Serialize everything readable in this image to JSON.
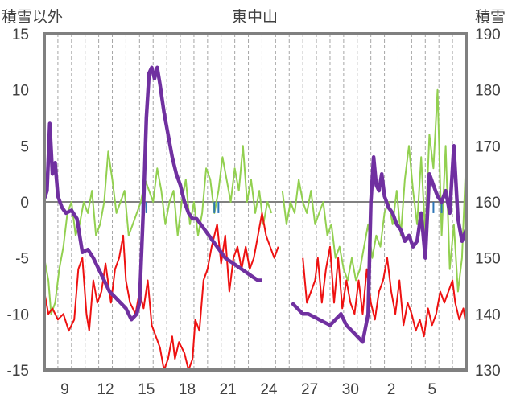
{
  "chart_data": {
    "type": "line",
    "title": "東中山",
    "left_axis_label": "積雪以外",
    "right_axis_label": "積雪",
    "ylim_left": [
      -15,
      15
    ],
    "ylim_right": [
      130,
      190
    ],
    "left_ticks": [
      "15",
      "10",
      "5",
      "0",
      "-5",
      "-10",
      "-15"
    ],
    "right_ticks": [
      "190",
      "180",
      "170",
      "160",
      "150",
      "140",
      "130"
    ],
    "x_range_day_index": [
      0,
      31
    ],
    "x_ticks": [
      {
        "label": "9",
        "day": 1.5
      },
      {
        "label": "12",
        "day": 4.5
      },
      {
        "label": "15",
        "day": 7.5
      },
      {
        "label": "18",
        "day": 10.5
      },
      {
        "label": "21",
        "day": 13.5
      },
      {
        "label": "24",
        "day": 16.5
      },
      {
        "label": "27",
        "day": 19.5
      },
      {
        "label": "30",
        "day": 22.5
      },
      {
        "label": "2",
        "day": 25.5
      },
      {
        "label": "5",
        "day": 28.5
      }
    ],
    "grid": {
      "vertical_dashed_per_day": true,
      "zero_line": true
    },
    "colors": {
      "red": "#ee1111",
      "green": "#92d050",
      "purple": "#7030a0",
      "blue": "#2e75b6",
      "frame": "#808080",
      "zero": "#808080"
    },
    "series": [
      {
        "axis": "left",
        "color": "#ee1111",
        "points": [
          [
            0,
            -8
          ],
          [
            0.3,
            -10
          ],
          [
            0.6,
            -9.5
          ],
          [
            1,
            -10.5
          ],
          [
            1.4,
            -10
          ],
          [
            1.8,
            -11.5
          ],
          [
            2.2,
            -10.5
          ],
          [
            2.5,
            -6
          ],
          [
            2.8,
            -5
          ],
          [
            3.1,
            -10
          ],
          [
            3.3,
            -11.5
          ],
          [
            3.6,
            -7
          ],
          [
            3.9,
            -9
          ],
          [
            4.2,
            -8
          ],
          [
            4.5,
            -5.5
          ],
          [
            4.9,
            -9
          ],
          [
            5.2,
            -6
          ],
          [
            5.5,
            -5
          ],
          [
            5.8,
            -3
          ],
          [
            6,
            -7
          ],
          [
            6.3,
            -9
          ],
          [
            6.7,
            -10
          ],
          [
            7,
            -8
          ],
          [
            7.3,
            -9.5
          ],
          [
            7.6,
            -7
          ],
          [
            7.9,
            -11
          ],
          [
            8.2,
            -12
          ],
          [
            8.5,
            -13
          ],
          [
            8.8,
            -15
          ],
          [
            9.1,
            -14
          ],
          [
            9.4,
            -12
          ],
          [
            9.6,
            -14
          ],
          [
            9.9,
            -12.5
          ],
          [
            10.3,
            -13.5
          ],
          [
            10.6,
            -15
          ],
          [
            10.9,
            -14
          ],
          [
            11.1,
            -10.5
          ],
          [
            11.4,
            -11.5
          ],
          [
            11.7,
            -7
          ],
          [
            12,
            -6
          ],
          [
            12.3,
            -4
          ],
          [
            12.7,
            -2
          ],
          [
            13,
            -5.5
          ],
          [
            13.3,
            -3
          ],
          [
            13.6,
            -8
          ],
          [
            13.9,
            -5
          ],
          [
            14.2,
            -4
          ],
          [
            14.5,
            -6
          ],
          [
            14.8,
            -4
          ],
          [
            15.1,
            -6
          ],
          [
            15.4,
            -5
          ],
          [
            15.7,
            -3
          ],
          [
            16,
            -1
          ],
          [
            16.3,
            -3
          ],
          [
            16.6,
            -4
          ],
          [
            16.9,
            -5
          ],
          [
            17.2,
            -4
          ]
        ]
      },
      {
        "axis": "left",
        "color": "#ee1111",
        "points": [
          [
            19,
            -5
          ],
          [
            19.3,
            -9
          ],
          [
            19.6,
            -8
          ],
          [
            19.9,
            -7
          ],
          [
            20.1,
            -5
          ],
          [
            20.4,
            -9
          ],
          [
            20.7,
            -6
          ],
          [
            21,
            -4
          ],
          [
            21.3,
            -9
          ],
          [
            21.6,
            -5
          ],
          [
            21.9,
            -9.5
          ],
          [
            22.2,
            -7
          ],
          [
            22.5,
            -9
          ],
          [
            22.8,
            -10
          ],
          [
            23.1,
            -7
          ],
          [
            23.4,
            -10
          ],
          [
            23.7,
            -6
          ],
          [
            24,
            -9
          ],
          [
            24.3,
            -10.5
          ],
          [
            24.6,
            -8
          ],
          [
            24.9,
            -7
          ],
          [
            25.2,
            -5
          ],
          [
            25.5,
            -8
          ],
          [
            25.8,
            -10
          ],
          [
            26.1,
            -7
          ],
          [
            26.4,
            -11
          ],
          [
            26.7,
            -9
          ],
          [
            27,
            -10
          ],
          [
            27.3,
            -11.5
          ],
          [
            27.6,
            -10.5
          ],
          [
            27.9,
            -12
          ],
          [
            28.2,
            -9.5
          ],
          [
            28.5,
            -11
          ],
          [
            28.8,
            -10
          ],
          [
            29.1,
            -8
          ],
          [
            29.4,
            -9
          ],
          [
            29.7,
            -8
          ],
          [
            30,
            -7
          ],
          [
            30.2,
            -9
          ],
          [
            30.5,
            -10.5
          ],
          [
            30.8,
            -9.5
          ],
          [
            31,
            -11
          ]
        ]
      },
      {
        "axis": "left",
        "color": "#92d050",
        "points": [
          [
            0,
            -5
          ],
          [
            0.3,
            -7
          ],
          [
            0.5,
            -10
          ],
          [
            0.8,
            -9
          ],
          [
            1.1,
            -6
          ],
          [
            1.4,
            -4
          ],
          [
            1.7,
            -1
          ],
          [
            2,
            0
          ],
          [
            2.3,
            -3
          ],
          [
            2.6,
            -2
          ],
          [
            2.9,
            0
          ],
          [
            3.2,
            -1
          ],
          [
            3.5,
            1
          ],
          [
            3.8,
            -3
          ],
          [
            4.1,
            -2
          ],
          [
            4.4,
            0
          ],
          [
            4.7,
            4.5
          ],
          [
            5,
            2
          ],
          [
            5.3,
            -1
          ],
          [
            5.6,
            0
          ],
          [
            5.9,
            1
          ],
          [
            6.2,
            -3
          ],
          [
            6.5,
            -2
          ],
          [
            6.8,
            -1
          ],
          [
            7.1,
            0
          ],
          [
            7.4,
            2
          ],
          [
            7.7,
            1
          ],
          [
            8,
            0
          ],
          [
            8.3,
            3
          ],
          [
            8.6,
            1
          ],
          [
            8.9,
            -2
          ],
          [
            9.2,
            0
          ],
          [
            9.5,
            1
          ],
          [
            9.8,
            -3
          ],
          [
            10.1,
            0
          ],
          [
            10.4,
            2
          ],
          [
            10.7,
            -2
          ],
          [
            11,
            0
          ],
          [
            11.3,
            -3
          ],
          [
            11.6,
            -1
          ],
          [
            11.9,
            3
          ],
          [
            12.2,
            2
          ],
          [
            12.5,
            -1
          ],
          [
            12.8,
            1
          ],
          [
            13.1,
            4
          ],
          [
            13.4,
            2
          ],
          [
            13.7,
            0
          ],
          [
            14,
            3
          ],
          [
            14.3,
            1
          ],
          [
            14.6,
            5
          ],
          [
            14.9,
            0
          ],
          [
            15.2,
            2
          ],
          [
            15.5,
            -1
          ],
          [
            15.8,
            1
          ],
          [
            16.1,
            -2
          ],
          [
            16.4,
            0
          ],
          [
            16.7,
            -1
          ]
        ]
      },
      {
        "axis": "left",
        "color": "#92d050",
        "points": [
          [
            17.5,
            1
          ],
          [
            17.8,
            -2
          ],
          [
            18.1,
            0
          ],
          [
            18.4,
            -1
          ],
          [
            18.7,
            2
          ],
          [
            19,
            0
          ],
          [
            19.3,
            -1
          ],
          [
            19.6,
            1
          ],
          [
            19.9,
            -2
          ],
          [
            20.2,
            -1
          ],
          [
            20.5,
            0
          ],
          [
            20.8,
            -3
          ],
          [
            21.1,
            -2
          ],
          [
            21.4,
            -5
          ],
          [
            21.7,
            -4
          ],
          [
            22,
            -6
          ],
          [
            22.3,
            -7
          ],
          [
            22.6,
            -5
          ],
          [
            22.9,
            -7
          ],
          [
            23.2,
            -6
          ],
          [
            23.5,
            -4
          ],
          [
            23.8,
            -2
          ],
          [
            24.1,
            -5
          ],
          [
            24.4,
            -3
          ],
          [
            24.7,
            -4
          ],
          [
            25,
            -1
          ],
          [
            25.3,
            0
          ],
          [
            25.6,
            -2
          ],
          [
            25.9,
            1
          ],
          [
            26.2,
            -3
          ],
          [
            26.5,
            2
          ],
          [
            26.8,
            5
          ],
          [
            27.1,
            1
          ],
          [
            27.4,
            -2
          ],
          [
            27.7,
            4
          ],
          [
            28,
            -3
          ],
          [
            28.3,
            6
          ],
          [
            28.6,
            3
          ],
          [
            28.9,
            10
          ],
          [
            29.2,
            -3
          ],
          [
            29.5,
            5
          ],
          [
            29.8,
            -6
          ],
          [
            30.1,
            -2
          ],
          [
            30.4,
            -8
          ],
          [
            30.7,
            -5
          ],
          [
            31,
            4
          ]
        ]
      },
      {
        "axis": "right",
        "color": "#7030a0",
        "points": [
          [
            0,
            160.5
          ],
          [
            0.2,
            162
          ],
          [
            0.4,
            174
          ],
          [
            0.6,
            165
          ],
          [
            0.8,
            167
          ],
          [
            1,
            161
          ],
          [
            1.3,
            159
          ],
          [
            1.6,
            158
          ],
          [
            2,
            158.5
          ],
          [
            2.4,
            157
          ],
          [
            2.8,
            151
          ],
          [
            3.2,
            151.5
          ],
          [
            3.6,
            150
          ],
          [
            4,
            148
          ],
          [
            4.4,
            146
          ],
          [
            4.8,
            144
          ],
          [
            5.2,
            143
          ],
          [
            5.6,
            142
          ],
          [
            6,
            141
          ],
          [
            6.4,
            139
          ],
          [
            6.8,
            140
          ],
          [
            7,
            142
          ],
          [
            7.3,
            160
          ],
          [
            7.5,
            175
          ],
          [
            7.7,
            183
          ],
          [
            7.9,
            184
          ],
          [
            8.1,
            182
          ],
          [
            8.3,
            184
          ],
          [
            8.5,
            181
          ],
          [
            8.8,
            176
          ],
          [
            9.1,
            172
          ],
          [
            9.4,
            168
          ],
          [
            9.7,
            165
          ],
          [
            10,
            163
          ],
          [
            10.3,
            160
          ],
          [
            10.6,
            158
          ],
          [
            10.9,
            157
          ],
          [
            11.2,
            157
          ],
          [
            11.5,
            156
          ],
          [
            11.8,
            155
          ],
          [
            12.1,
            154
          ],
          [
            12.4,
            153
          ],
          [
            12.7,
            152
          ],
          [
            13,
            151
          ],
          [
            13.3,
            150
          ],
          [
            13.6,
            149.5
          ],
          [
            13.9,
            149
          ],
          [
            14.2,
            148.5
          ],
          [
            14.5,
            148
          ],
          [
            14.8,
            147.5
          ],
          [
            15.1,
            147
          ],
          [
            15.4,
            146.5
          ],
          [
            15.7,
            146
          ],
          [
            16,
            146
          ]
        ]
      },
      {
        "axis": "right",
        "color": "#7030a0",
        "points": [
          [
            18.2,
            142
          ],
          [
            18.6,
            141
          ],
          [
            19,
            140
          ],
          [
            19.4,
            140
          ],
          [
            19.8,
            139.5
          ],
          [
            20.2,
            139
          ],
          [
            20.6,
            138.5
          ],
          [
            21,
            138
          ],
          [
            21.4,
            139
          ],
          [
            21.8,
            140
          ],
          [
            22.2,
            138
          ],
          [
            22.6,
            137
          ],
          [
            23,
            136
          ],
          [
            23.4,
            135
          ],
          [
            23.8,
            140
          ],
          [
            24,
            160
          ],
          [
            24.2,
            168
          ],
          [
            24.4,
            163
          ],
          [
            24.6,
            162
          ],
          [
            24.8,
            165
          ],
          [
            25,
            161
          ],
          [
            25.3,
            159
          ],
          [
            25.6,
            158
          ],
          [
            25.9,
            156
          ],
          [
            26.2,
            155
          ],
          [
            26.5,
            153
          ],
          [
            26.8,
            154
          ],
          [
            27.1,
            152
          ],
          [
            27.4,
            153
          ],
          [
            27.7,
            158
          ],
          [
            28,
            150
          ],
          [
            28.3,
            165
          ],
          [
            28.6,
            163
          ],
          [
            28.9,
            161
          ],
          [
            29.2,
            160
          ],
          [
            29.5,
            162
          ],
          [
            29.8,
            158
          ],
          [
            30.1,
            170
          ],
          [
            30.4,
            157
          ],
          [
            30.7,
            153
          ],
          [
            31,
            155
          ]
        ]
      },
      {
        "axis": "left",
        "color": "#2e75b6",
        "points": [
          [
            7.2,
            0
          ],
          [
            7.2,
            -1
          ],
          [
            7.5,
            0
          ],
          [
            7.5,
            -1
          ],
          [
            12.5,
            0
          ],
          [
            12.5,
            -1
          ],
          [
            12.8,
            0
          ],
          [
            12.8,
            -1
          ],
          [
            28.6,
            0
          ],
          [
            28.6,
            -1
          ],
          [
            29.2,
            0
          ],
          [
            29.2,
            -1
          ]
        ]
      }
    ]
  }
}
